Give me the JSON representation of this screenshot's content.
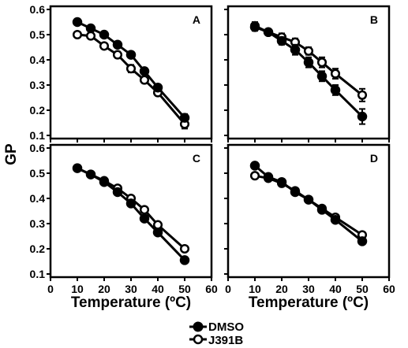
{
  "figure": {
    "y_title": "GP",
    "x_title": "Temperature (ºC)",
    "legend": [
      {
        "name": "DMSO",
        "marker": "filled"
      },
      {
        "name": "J391B",
        "marker": "open"
      }
    ]
  },
  "chart_data": [
    {
      "type": "line",
      "panel_label": "A",
      "x": [
        10,
        15,
        20,
        25,
        30,
        35,
        40,
        50
      ],
      "series": [
        {
          "name": "DMSO",
          "marker": "filled",
          "values": [
            0.55,
            0.525,
            0.5,
            0.46,
            0.42,
            0.355,
            0.29,
            0.17
          ],
          "errors": [
            0.01,
            0.01,
            0.01,
            0.01,
            0.01,
            0.012,
            0.012,
            0.015
          ]
        },
        {
          "name": "J391B",
          "marker": "open",
          "values": [
            0.5,
            0.495,
            0.455,
            0.42,
            0.365,
            0.32,
            0.27,
            0.145
          ],
          "errors": [
            0.01,
            0.01,
            0.01,
            0.012,
            0.015,
            0.012,
            0.012,
            0.018
          ]
        }
      ],
      "xlim": [
        0,
        60
      ],
      "ylim": [
        0.1,
        0.6
      ],
      "xticks": [
        0,
        10,
        20,
        30,
        40,
        50,
        60
      ],
      "yticks": [
        0.1,
        0.2,
        0.3,
        0.4,
        0.5,
        0.6
      ],
      "xlabel": "",
      "ylabel": "GP"
    },
    {
      "type": "line",
      "panel_label": "B",
      "x": [
        10,
        15,
        20,
        25,
        30,
        35,
        40,
        50
      ],
      "series": [
        {
          "name": "DMSO",
          "marker": "filled",
          "values": [
            0.53,
            0.51,
            0.475,
            0.44,
            0.39,
            0.335,
            0.28,
            0.175
          ],
          "errors": [
            0.015,
            0.01,
            0.015,
            0.02,
            0.02,
            0.02,
            0.02,
            0.03
          ]
        },
        {
          "name": "J391B",
          "marker": "open",
          "values": [
            0.535,
            0.51,
            0.49,
            0.47,
            0.435,
            0.39,
            0.345,
            0.26
          ],
          "errors": [
            0.015,
            0.01,
            0.015,
            0.015,
            0.015,
            0.02,
            0.02,
            0.025
          ]
        }
      ],
      "xlim": [
        0,
        60
      ],
      "ylim": [
        0.1,
        0.6
      ],
      "xticks": [
        0,
        10,
        20,
        30,
        40,
        50,
        60
      ],
      "yticks": [
        0.1,
        0.2,
        0.3,
        0.4,
        0.5,
        0.6
      ],
      "xlabel": "",
      "ylabel": ""
    },
    {
      "type": "line",
      "panel_label": "C",
      "x": [
        10,
        15,
        20,
        25,
        30,
        35,
        40,
        50
      ],
      "series": [
        {
          "name": "DMSO",
          "marker": "filled",
          "values": [
            0.52,
            0.495,
            0.465,
            0.425,
            0.38,
            0.32,
            0.265,
            0.155
          ],
          "errors": [
            0.008,
            0.008,
            0.008,
            0.01,
            0.01,
            0.01,
            0.01,
            0.01
          ]
        },
        {
          "name": "J391B",
          "marker": "open",
          "values": [
            0.52,
            0.495,
            0.47,
            0.44,
            0.4,
            0.355,
            0.295,
            0.2
          ],
          "errors": [
            0.008,
            0.008,
            0.008,
            0.01,
            0.01,
            0.01,
            0.01,
            0.01
          ]
        }
      ],
      "xlim": [
        0,
        60
      ],
      "ylim": [
        0.1,
        0.6
      ],
      "xticks": [
        0,
        10,
        20,
        30,
        40,
        50,
        60
      ],
      "yticks": [
        0.1,
        0.2,
        0.3,
        0.4,
        0.5,
        0.6
      ],
      "xlabel": "Temperature (ºC)",
      "ylabel": ""
    },
    {
      "type": "line",
      "panel_label": "D",
      "x": [
        10,
        15,
        20,
        25,
        30,
        35,
        40,
        50
      ],
      "series": [
        {
          "name": "DMSO",
          "marker": "filled",
          "values": [
            0.53,
            0.485,
            0.465,
            0.425,
            0.395,
            0.355,
            0.315,
            0.23
          ],
          "errors": [
            0.008,
            0.008,
            0.008,
            0.008,
            0.008,
            0.008,
            0.008,
            0.008
          ]
        },
        {
          "name": "J391B",
          "marker": "open",
          "values": [
            0.49,
            0.48,
            0.46,
            0.43,
            0.395,
            0.36,
            0.325,
            0.255
          ],
          "errors": [
            0.008,
            0.008,
            0.008,
            0.008,
            0.008,
            0.008,
            0.008,
            0.008
          ]
        }
      ],
      "xlim": [
        0,
        60
      ],
      "ylim": [
        0.1,
        0.6
      ],
      "xticks": [
        0,
        10,
        20,
        30,
        40,
        50,
        60
      ],
      "yticks": [
        0.1,
        0.2,
        0.3,
        0.4,
        0.5,
        0.6
      ],
      "xlabel": "Temperature (ºC)",
      "ylabel": ""
    }
  ]
}
